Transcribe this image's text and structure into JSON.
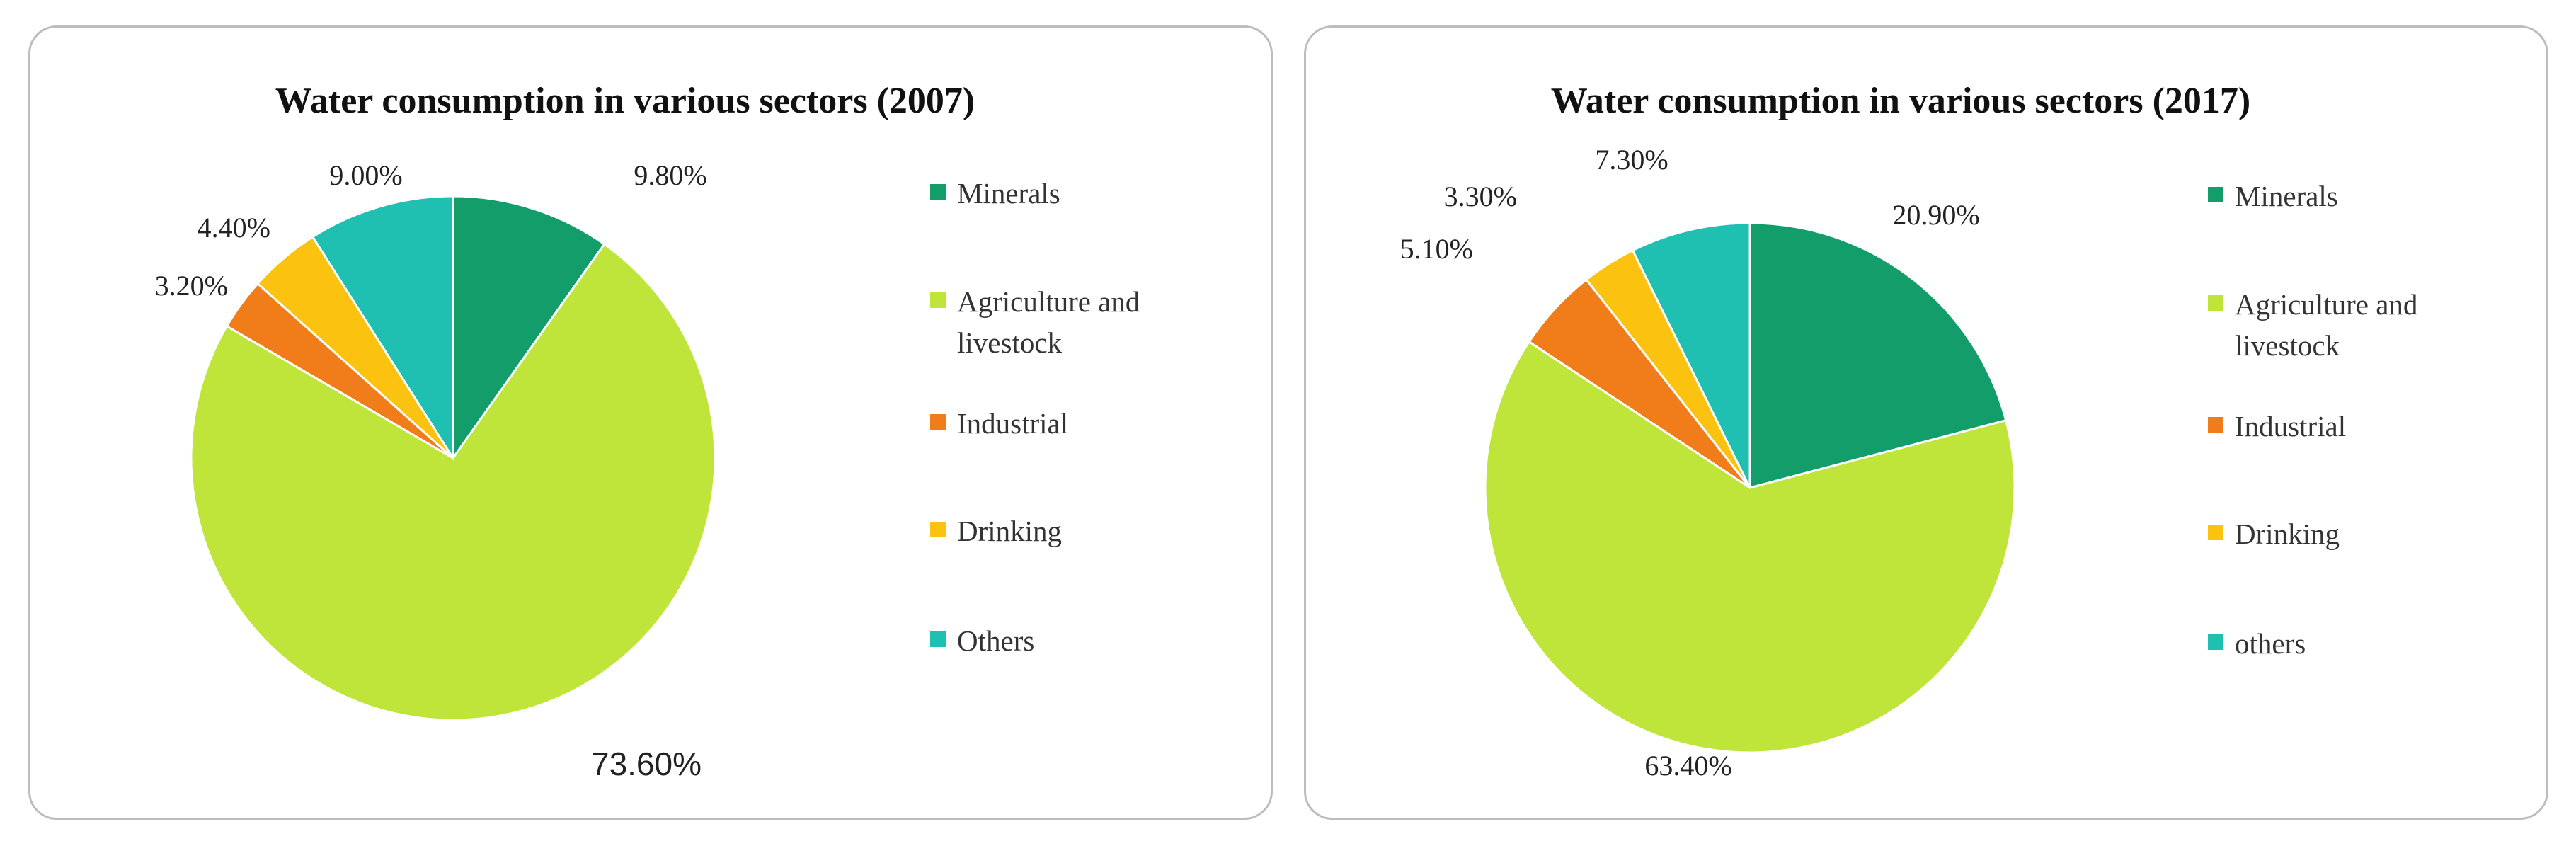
{
  "chart_data": [
    {
      "type": "pie",
      "title": "Water consumption  in various sectors (2007)",
      "start_angle_deg": 0,
      "direction": "clockwise",
      "slices": [
        {
          "name": "Minerals",
          "value": 9.8,
          "label": "9.80%",
          "color": "#129d6b"
        },
        {
          "name": "Agriculture and livestock",
          "value": 73.6,
          "label": "73.60%",
          "color": "#bfe43a"
        },
        {
          "name": "Industrial",
          "value": 3.2,
          "label": "3.20%",
          "color": "#f07d1a"
        },
        {
          "name": "Drinking",
          "value": 4.4,
          "label": "4.40%",
          "color": "#fbc210"
        },
        {
          "name": "Others",
          "value": 9.0,
          "label": "9.00%",
          "color": "#1fbfb2"
        }
      ],
      "legend": {
        "placement": "right",
        "entries": [
          {
            "lines": [
              "Minerals"
            ],
            "color": "#129d6b"
          },
          {
            "lines": [
              "Agriculture and",
              "livestock"
            ],
            "color": "#bfe43a"
          },
          {
            "lines": [
              "Industrial"
            ],
            "color": "#f07d1a"
          },
          {
            "lines": [
              "Drinking"
            ],
            "color": "#fbc210"
          },
          {
            "lines": [
              "Others"
            ],
            "color": "#1fbfb2"
          }
        ]
      }
    },
    {
      "type": "pie",
      "title": "Water consumption  in various sectors (2017)",
      "start_angle_deg": 0,
      "direction": "clockwise",
      "slices": [
        {
          "name": "Minerals",
          "value": 20.9,
          "label": "20.90%",
          "color": "#129d6b"
        },
        {
          "name": "Agriculture and livestock",
          "value": 63.4,
          "label": "63.40%",
          "color": "#bfe43a"
        },
        {
          "name": "Industrial",
          "value": 5.1,
          "label": "5.10%",
          "color": "#f07d1a"
        },
        {
          "name": "Drinking",
          "value": 3.3,
          "label": "3.30%",
          "color": "#fbc210"
        },
        {
          "name": "others",
          "value": 7.3,
          "label": "7.30%",
          "color": "#1fbfb2"
        }
      ],
      "legend": {
        "placement": "right",
        "entries": [
          {
            "lines": [
              "Minerals"
            ],
            "color": "#129d6b"
          },
          {
            "lines": [
              "Agriculture and",
              "livestock"
            ],
            "color": "#bfe43a"
          },
          {
            "lines": [
              "Industrial"
            ],
            "color": "#f07d1a"
          },
          {
            "lines": [
              "Drinking"
            ],
            "color": "#fbc210"
          },
          {
            "lines": [
              "others"
            ],
            "color": "#1fbfb2"
          }
        ]
      }
    }
  ]
}
